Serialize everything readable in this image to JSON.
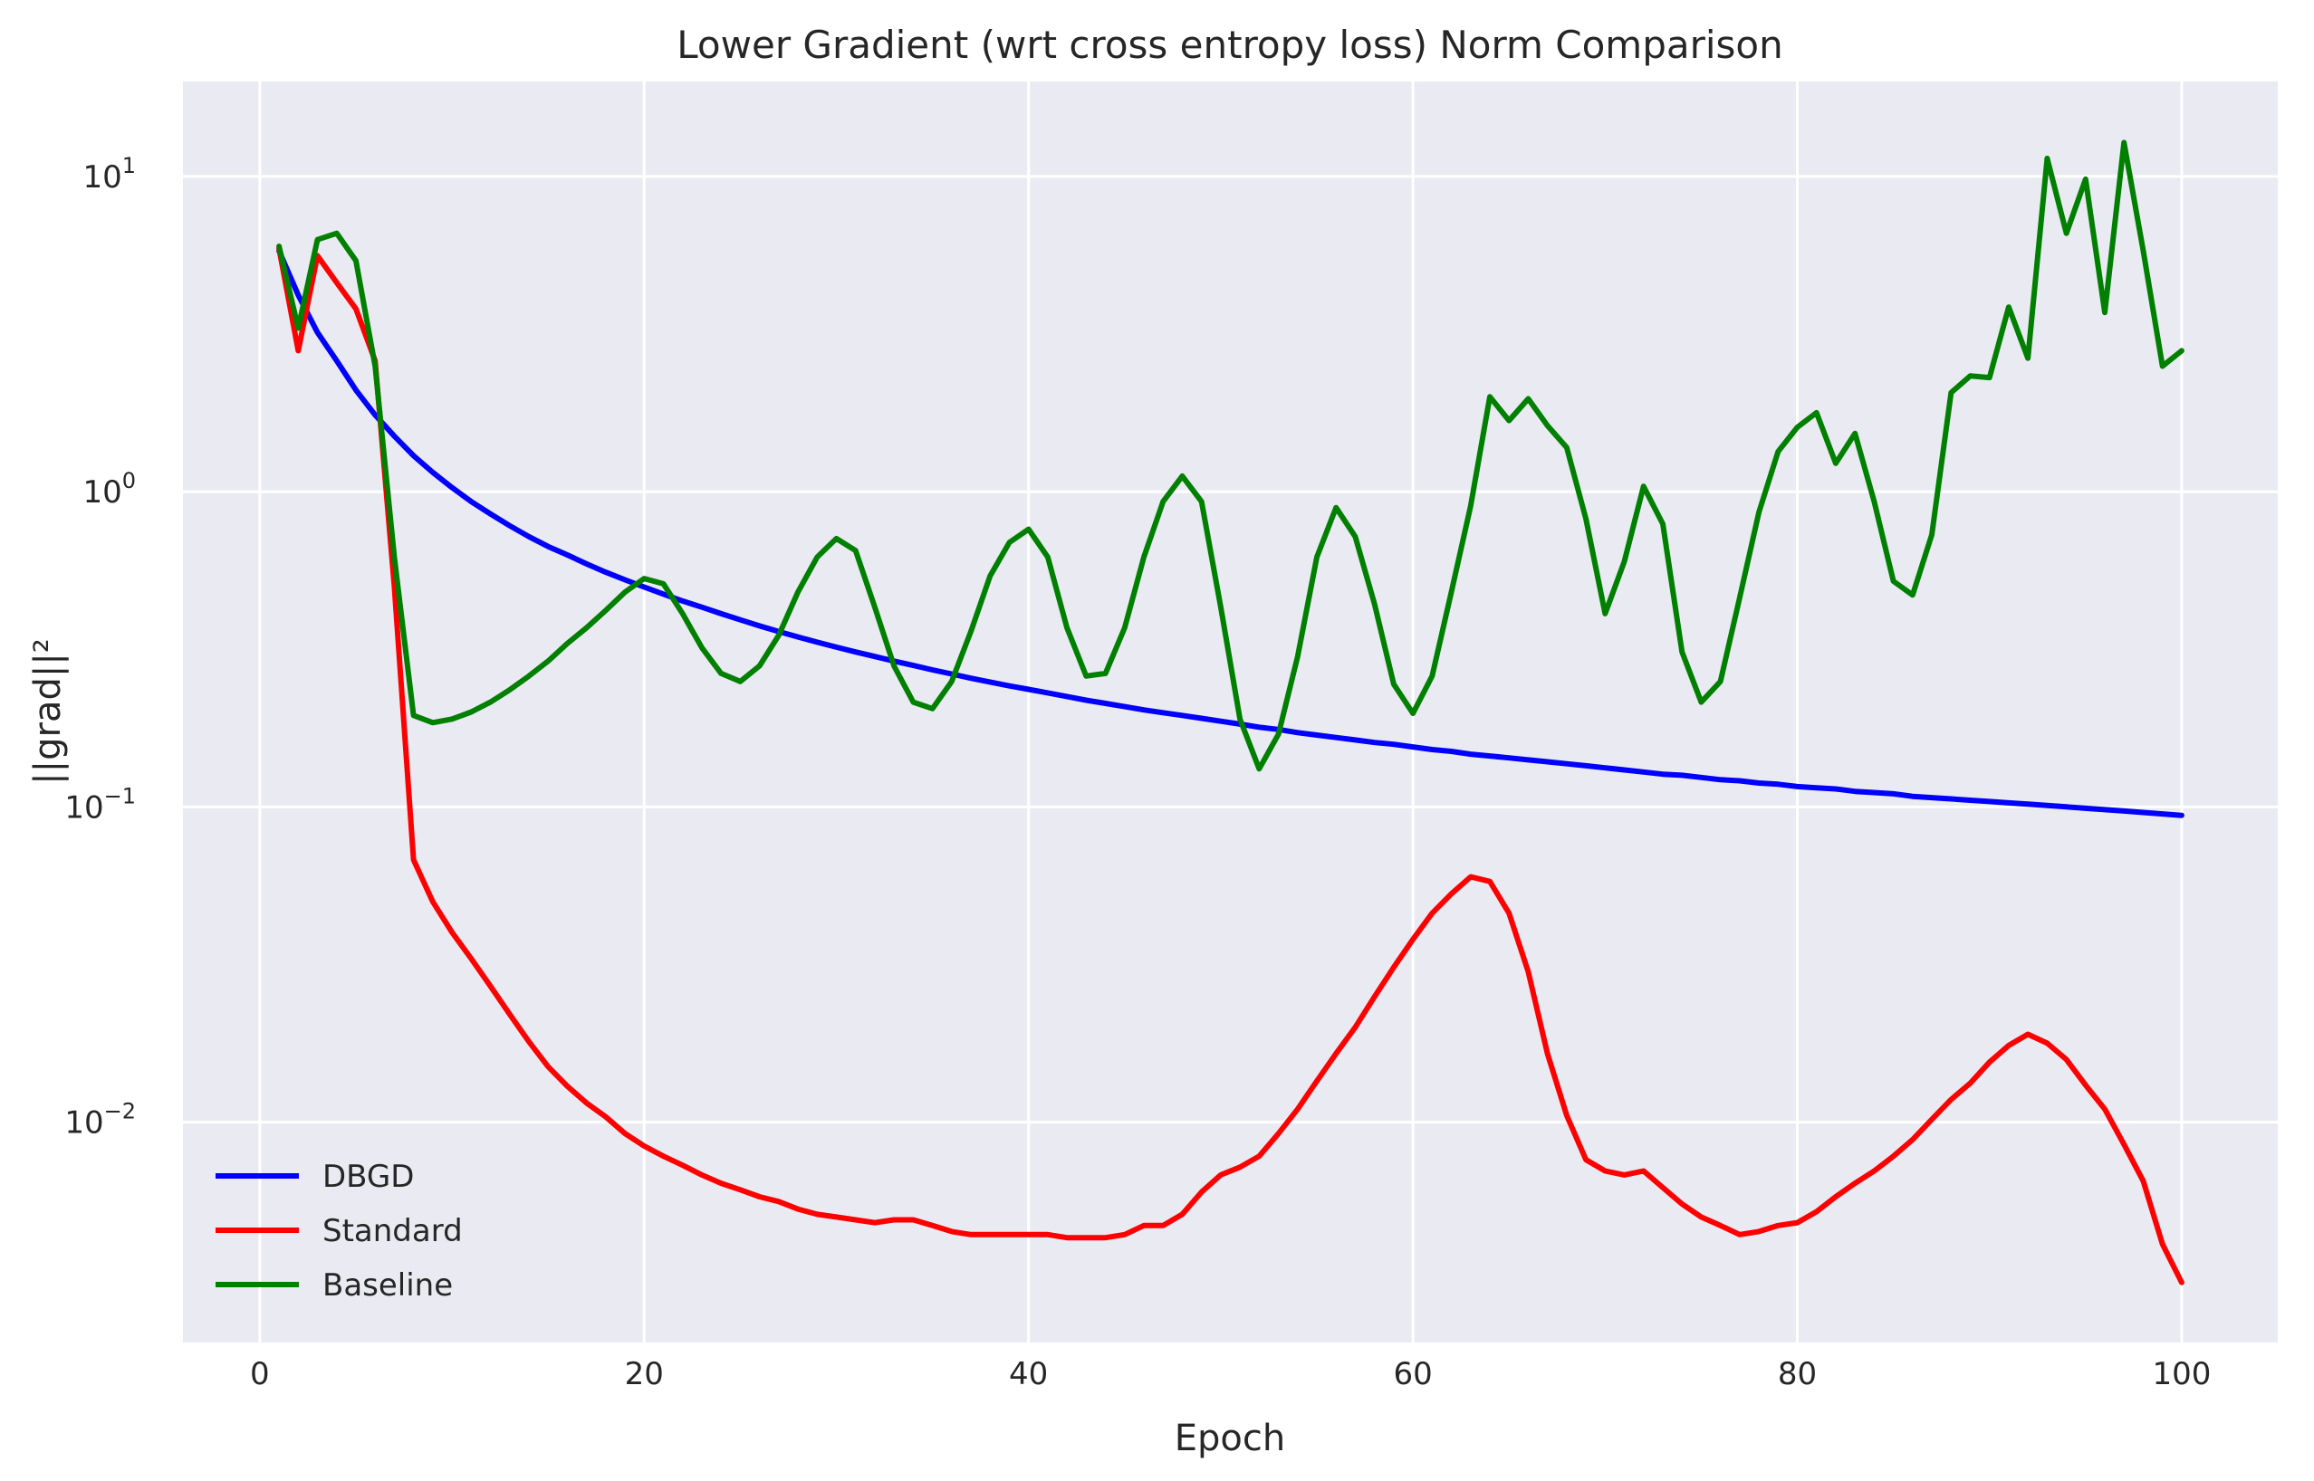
{
  "chart_data": {
    "type": "line",
    "title": "Lower Gradient (wrt cross entropy loss) Norm Comparison",
    "xlabel": "Epoch",
    "ylabel": "||grad||²",
    "xlim": [
      -4,
      105
    ],
    "ylim": [
      0.002,
      20
    ],
    "yscale": "log",
    "grid": true,
    "background": "#eaeaf2",
    "legend": "lower-left",
    "xticks": [
      {
        "value": 0,
        "label": "0"
      },
      {
        "value": 20,
        "label": "20"
      },
      {
        "value": 40,
        "label": "40"
      },
      {
        "value": 60,
        "label": "60"
      },
      {
        "value": 80,
        "label": "80"
      },
      {
        "value": 100,
        "label": "100"
      }
    ],
    "yticks": [
      {
        "value": 10,
        "base": "10",
        "exp": "1"
      },
      {
        "value": 1,
        "base": "10",
        "exp": "0"
      },
      {
        "value": 0.1,
        "base": "10",
        "exp": "−1"
      },
      {
        "value": 0.01,
        "base": "10",
        "exp": "−2"
      }
    ],
    "x": [
      1,
      2,
      3,
      4,
      5,
      6,
      7,
      8,
      9,
      10,
      11,
      12,
      13,
      14,
      15,
      16,
      17,
      18,
      19,
      20,
      21,
      22,
      23,
      24,
      25,
      26,
      27,
      28,
      29,
      30,
      31,
      32,
      33,
      34,
      35,
      36,
      37,
      38,
      39,
      40,
      41,
      42,
      43,
      44,
      45,
      46,
      47,
      48,
      49,
      50,
      51,
      52,
      53,
      54,
      55,
      56,
      57,
      58,
      59,
      60,
      61,
      62,
      63,
      64,
      65,
      66,
      67,
      68,
      69,
      70,
      71,
      72,
      73,
      74,
      75,
      76,
      77,
      78,
      79,
      80,
      81,
      82,
      83,
      84,
      85,
      86,
      87,
      88,
      89,
      90,
      91,
      92,
      93,
      94,
      95,
      96,
      97,
      98,
      99,
      100
    ],
    "series": [
      {
        "name": "DBGD",
        "color": "#0000ff",
        "values": [
          5.8,
          4.2,
          3.2,
          2.6,
          2.1,
          1.75,
          1.5,
          1.3,
          1.15,
          1.03,
          0.93,
          0.85,
          0.78,
          0.72,
          0.67,
          0.63,
          0.59,
          0.555,
          0.525,
          0.498,
          0.473,
          0.45,
          0.43,
          0.41,
          0.392,
          0.375,
          0.36,
          0.346,
          0.333,
          0.321,
          0.31,
          0.3,
          0.29,
          0.281,
          0.272,
          0.264,
          0.256,
          0.249,
          0.242,
          0.236,
          0.23,
          0.224,
          0.218,
          0.213,
          0.208,
          0.203,
          0.199,
          0.195,
          0.191,
          0.187,
          0.183,
          0.179,
          0.176,
          0.172,
          0.169,
          0.166,
          0.163,
          0.16,
          0.158,
          0.155,
          0.152,
          0.15,
          0.147,
          0.145,
          0.143,
          0.141,
          0.139,
          0.137,
          0.135,
          0.133,
          0.131,
          0.129,
          0.127,
          0.126,
          0.124,
          0.122,
          0.121,
          0.119,
          0.118,
          0.116,
          0.115,
          0.114,
          0.112,
          0.111,
          0.11,
          0.108,
          0.107,
          0.106,
          0.105,
          0.104,
          0.103,
          0.102,
          0.101,
          0.1,
          0.099,
          0.098,
          0.097,
          0.096,
          0.095,
          0.094
        ]
      },
      {
        "name": "Standard",
        "color": "#ff0000",
        "values": [
          5.9,
          2.8,
          5.6,
          4.6,
          3.8,
          2.6,
          0.5,
          0.068,
          0.05,
          0.04,
          0.033,
          0.027,
          0.022,
          0.018,
          0.015,
          0.013,
          0.0115,
          0.0104,
          0.0092,
          0.0084,
          0.0078,
          0.0073,
          0.0068,
          0.0064,
          0.0061,
          0.0058,
          0.0056,
          0.0053,
          0.0051,
          0.005,
          0.0049,
          0.0048,
          0.0049,
          0.0049,
          0.0047,
          0.0045,
          0.0044,
          0.0044,
          0.0044,
          0.0044,
          0.0044,
          0.0043,
          0.0043,
          0.0043,
          0.0044,
          0.0047,
          0.0047,
          0.0051,
          0.006,
          0.0068,
          0.0072,
          0.0078,
          0.0092,
          0.011,
          0.0135,
          0.0165,
          0.02,
          0.025,
          0.031,
          0.038,
          0.046,
          0.053,
          0.06,
          0.058,
          0.046,
          0.03,
          0.0165,
          0.0105,
          0.0076,
          0.007,
          0.0068,
          0.007,
          0.0062,
          0.0055,
          0.005,
          0.0047,
          0.0044,
          0.0045,
          0.0047,
          0.0048,
          0.0052,
          0.0058,
          0.0064,
          0.007,
          0.0078,
          0.0088,
          0.0102,
          0.0118,
          0.0133,
          0.0155,
          0.0175,
          0.019,
          0.0178,
          0.0158,
          0.0131,
          0.011,
          0.0085,
          0.0065,
          0.0041,
          0.0031
        ]
      },
      {
        "name": "Baseline",
        "color": "#008000",
        "values": [
          6.0,
          3.3,
          6.3,
          6.6,
          5.4,
          2.5,
          0.62,
          0.195,
          0.185,
          0.19,
          0.2,
          0.215,
          0.235,
          0.26,
          0.29,
          0.33,
          0.37,
          0.42,
          0.48,
          0.53,
          0.51,
          0.41,
          0.32,
          0.265,
          0.25,
          0.28,
          0.35,
          0.48,
          0.62,
          0.71,
          0.65,
          0.43,
          0.28,
          0.215,
          0.205,
          0.25,
          0.36,
          0.54,
          0.69,
          0.76,
          0.62,
          0.37,
          0.26,
          0.265,
          0.37,
          0.62,
          0.93,
          1.12,
          0.93,
          0.43,
          0.19,
          0.132,
          0.17,
          0.3,
          0.62,
          0.89,
          0.72,
          0.44,
          0.245,
          0.198,
          0.26,
          0.48,
          0.9,
          2.0,
          1.68,
          1.97,
          1.62,
          1.38,
          0.82,
          0.41,
          0.6,
          1.04,
          0.79,
          0.31,
          0.215,
          0.25,
          0.46,
          0.86,
          1.34,
          1.6,
          1.78,
          1.23,
          1.53,
          0.93,
          0.52,
          0.47,
          0.73,
          2.06,
          2.33,
          2.3,
          3.85,
          2.65,
          11.4,
          6.6,
          9.8,
          3.7,
          12.8,
          5.8,
          2.5,
          2.8
        ]
      }
    ]
  }
}
